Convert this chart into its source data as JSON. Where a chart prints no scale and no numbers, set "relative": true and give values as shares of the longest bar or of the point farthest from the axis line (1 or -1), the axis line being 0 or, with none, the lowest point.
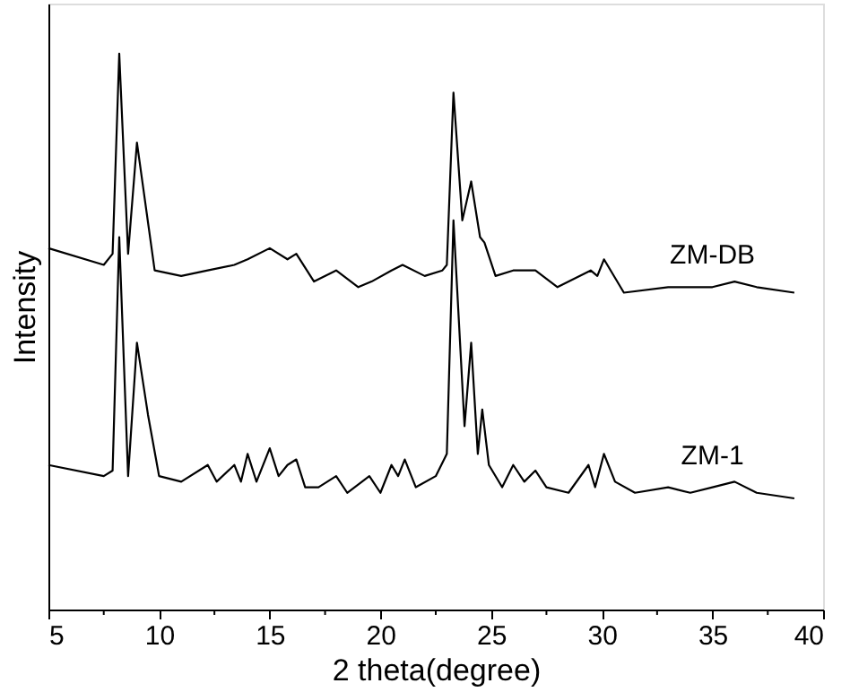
{
  "chart_data": {
    "type": "line",
    "xlabel": "2 theta(degree)",
    "ylabel": "Intensity",
    "relative": true,
    "grid": false,
    "xlim": [
      5,
      40
    ],
    "xticks": [
      5,
      {
        "value": 7.5,
        "label": null
      },
      10,
      {
        "value": 12.5,
        "label": null
      },
      15,
      {
        "value": 17.5,
        "label": null
      },
      20,
      {
        "value": 22.5,
        "label": null
      },
      25,
      {
        "value": 27.5,
        "label": null
      },
      30,
      {
        "value": 32.5,
        "label": null
      },
      35,
      {
        "value": 37.5,
        "label": null
      },
      40
    ],
    "series": [
      {
        "name": "ZM-DB",
        "color": "#000000",
        "x": [
          5,
          7.5,
          7.9,
          8.2,
          8.6,
          9.0,
          9.8,
          11,
          12.2,
          13.4,
          14,
          15,
          15.8,
          16.2,
          17,
          18,
          19,
          19.6,
          20.5,
          21,
          22,
          22.8,
          23.0,
          23.3,
          23.7,
          24.1,
          24.5,
          24.7,
          25.2,
          26,
          27,
          28,
          29.5,
          29.8,
          30.1,
          31,
          33,
          35,
          36,
          37,
          38.7
        ],
        "values": [
          0.65,
          0.62,
          0.64,
          1.0,
          0.64,
          0.84,
          0.61,
          0.6,
          0.61,
          0.62,
          0.63,
          0.65,
          0.63,
          0.64,
          0.59,
          0.61,
          0.58,
          0.59,
          0.61,
          0.62,
          0.6,
          0.61,
          0.62,
          0.93,
          0.7,
          0.77,
          0.67,
          0.66,
          0.6,
          0.61,
          0.61,
          0.58,
          0.61,
          0.6,
          0.63,
          0.57,
          0.58,
          0.58,
          0.59,
          0.58,
          0.57
        ]
      },
      {
        "name": "ZM-1",
        "color": "#000000",
        "x": [
          5,
          7.5,
          7.9,
          8.2,
          8.6,
          9.0,
          9.5,
          10,
          11,
          12.2,
          12.6,
          13.4,
          13.7,
          14,
          14.4,
          15,
          15.4,
          15.8,
          16.2,
          16.6,
          17.2,
          18,
          18.5,
          19.5,
          20,
          20.5,
          20.8,
          21.1,
          21.6,
          22.5,
          23.0,
          23.3,
          23.8,
          24.1,
          24.4,
          24.6,
          24.9,
          25.5,
          26,
          26.5,
          27,
          27.5,
          28.5,
          29.4,
          29.7,
          30.1,
          30.6,
          31.5,
          33,
          34,
          35,
          36,
          37,
          38.7
        ],
        "values": [
          0.26,
          0.24,
          0.25,
          0.67,
          0.24,
          0.48,
          0.35,
          0.24,
          0.23,
          0.26,
          0.23,
          0.26,
          0.23,
          0.28,
          0.23,
          0.29,
          0.24,
          0.26,
          0.27,
          0.22,
          0.22,
          0.24,
          0.21,
          0.24,
          0.21,
          0.26,
          0.24,
          0.27,
          0.22,
          0.24,
          0.28,
          0.7,
          0.33,
          0.48,
          0.28,
          0.36,
          0.26,
          0.22,
          0.26,
          0.23,
          0.25,
          0.22,
          0.21,
          0.26,
          0.22,
          0.28,
          0.23,
          0.21,
          0.22,
          0.21,
          0.22,
          0.23,
          0.21,
          0.2
        ]
      }
    ]
  }
}
